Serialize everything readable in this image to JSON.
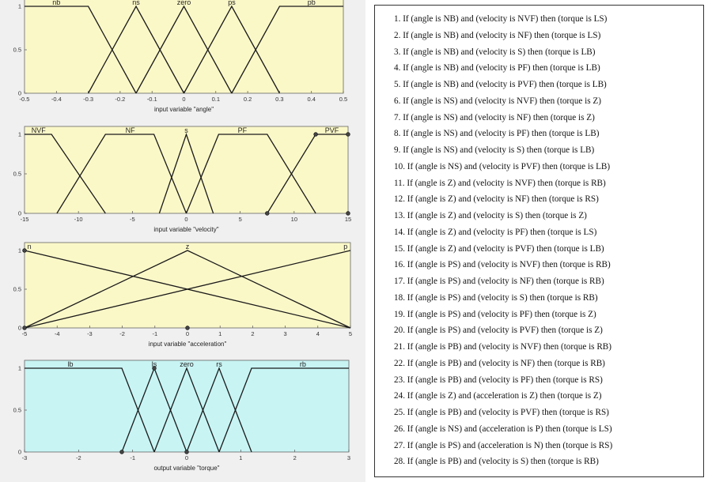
{
  "plots": [
    {
      "id": "angle",
      "xlabel": "input variable \"angle\"",
      "xlim": [
        -0.5,
        0.5
      ],
      "ylim": [
        0,
        1
      ],
      "xticks": [
        "-0.5",
        "-0.4",
        "-0.3",
        "-0.2",
        "-0.1",
        "0",
        "0.1",
        "0.2",
        "0.3",
        "0.4",
        "0.5"
      ],
      "xtick_values": [
        -0.5,
        -0.4,
        -0.3,
        -0.2,
        -0.1,
        0,
        0.1,
        0.2,
        0.3,
        0.4,
        0.5
      ],
      "yticks": [
        "0",
        "0.5",
        "1"
      ],
      "background": "#fbf8c8",
      "mfs": [
        {
          "name": "nb",
          "labelx": -0.4,
          "points": [
            [
              -0.5,
              1
            ],
            [
              -0.3,
              1
            ],
            [
              -0.15,
              0
            ]
          ]
        },
        {
          "name": "ns",
          "labelx": -0.15,
          "points": [
            [
              -0.3,
              0
            ],
            [
              -0.15,
              1
            ],
            [
              0,
              0
            ]
          ]
        },
        {
          "name": "zero",
          "labelx": 0,
          "points": [
            [
              -0.15,
              0
            ],
            [
              0,
              1
            ],
            [
              0.15,
              0
            ]
          ]
        },
        {
          "name": "ps",
          "labelx": 0.15,
          "points": [
            [
              0,
              0
            ],
            [
              0.15,
              1
            ],
            [
              0.3,
              0
            ]
          ]
        },
        {
          "name": "pb",
          "labelx": 0.4,
          "points": [
            [
              0.15,
              0
            ],
            [
              0.3,
              1
            ],
            [
              0.5,
              1
            ]
          ]
        }
      ]
    },
    {
      "id": "velocity",
      "xlabel": "input variable \"velocity\"",
      "xlim": [
        -15,
        15
      ],
      "ylim": [
        0,
        1
      ],
      "xticks": [
        "-15",
        "-10",
        "-5",
        "0",
        "5",
        "10",
        "15"
      ],
      "xtick_values": [
        -15,
        -10,
        -5,
        0,
        5,
        10,
        15
      ],
      "yticks": [
        "0",
        "0.5",
        "1"
      ],
      "background": "#fbf8c8",
      "mfs": [
        {
          "name": "NVF",
          "labelx": -13.7,
          "points": [
            [
              -15,
              1
            ],
            [
              -12.5,
              1
            ],
            [
              -7.5,
              0
            ]
          ]
        },
        {
          "name": "NF",
          "labelx": -5.2,
          "points": [
            [
              -12,
              0
            ],
            [
              -7.5,
              1
            ],
            [
              -3,
              1
            ],
            [
              0,
              0
            ]
          ]
        },
        {
          "name": "s",
          "labelx": 0,
          "points": [
            [
              -2.5,
              0
            ],
            [
              0,
              1
            ],
            [
              2.5,
              0
            ]
          ]
        },
        {
          "name": "PF",
          "labelx": 5.2,
          "points": [
            [
              0,
              0
            ],
            [
              3,
              1
            ],
            [
              7.5,
              1
            ],
            [
              12,
              0
            ]
          ]
        },
        {
          "name": "PVF",
          "labelx": 13.5,
          "points": [
            [
              7.5,
              0
            ],
            [
              12,
              1
            ],
            [
              15,
              1
            ]
          ]
        }
      ],
      "markers": [
        [
          7.5,
          0
        ],
        [
          12,
          1
        ],
        [
          15,
          1
        ],
        [
          15,
          0
        ]
      ]
    },
    {
      "id": "acceleration",
      "xlabel": "input variable \"acceleration\"",
      "xlim": [
        -5,
        5
      ],
      "ylim": [
        0,
        1
      ],
      "xticks": [
        "-5",
        "-4",
        "-3",
        "-2",
        "-1",
        "0",
        "1",
        "2",
        "3",
        "4",
        "5"
      ],
      "xtick_values": [
        -5,
        -4,
        -3,
        -2,
        -1,
        0,
        1,
        2,
        3,
        4,
        5
      ],
      "yticks": [
        "0",
        "0.5",
        "1"
      ],
      "background": "#fbf8c8",
      "mfs": [
        {
          "name": "n",
          "labelx": -4.85,
          "points": [
            [
              -5,
              1
            ],
            [
              5,
              0
            ]
          ]
        },
        {
          "name": "z",
          "labelx": 0,
          "points": [
            [
              -5,
              0
            ],
            [
              0,
              1
            ],
            [
              5,
              0
            ]
          ]
        },
        {
          "name": "p",
          "labelx": 4.85,
          "points": [
            [
              -5,
              0
            ],
            [
              5,
              1
            ]
          ]
        }
      ],
      "markers": [
        [
          -5,
          1
        ],
        [
          0,
          0
        ],
        [
          -5,
          0
        ]
      ]
    },
    {
      "id": "torque",
      "xlabel": "output variable \"torque\"",
      "xlim": [
        -3,
        3
      ],
      "ylim": [
        0,
        1
      ],
      "xticks": [
        "-3",
        "-2",
        "-1",
        "0",
        "1",
        "2",
        "3"
      ],
      "xtick_values": [
        -3,
        -2,
        -1,
        0,
        1,
        2,
        3
      ],
      "yticks": [
        "0",
        "0.5",
        "1"
      ],
      "background": "#c8f4f4",
      "mfs": [
        {
          "name": "lb",
          "labelx": -2.15,
          "points": [
            [
              -3,
              1
            ],
            [
              -1.2,
              1
            ],
            [
              -0.6,
              0
            ]
          ]
        },
        {
          "name": "ls",
          "labelx": -0.6,
          "points": [
            [
              -1.2,
              0
            ],
            [
              -0.6,
              1
            ],
            [
              0,
              0
            ]
          ]
        },
        {
          "name": "zero",
          "labelx": 0,
          "points": [
            [
              -0.6,
              0
            ],
            [
              0,
              1
            ],
            [
              0.6,
              0
            ]
          ]
        },
        {
          "name": "rs",
          "labelx": 0.6,
          "points": [
            [
              0,
              0
            ],
            [
              0.6,
              1
            ],
            [
              1.2,
              0
            ]
          ]
        },
        {
          "name": "rb",
          "labelx": 2.15,
          "points": [
            [
              0.6,
              0
            ],
            [
              1.2,
              1
            ],
            [
              3,
              1
            ]
          ]
        }
      ],
      "markers": [
        [
          -1.2,
          0
        ],
        [
          -0.6,
          1
        ],
        [
          0,
          0
        ]
      ]
    }
  ],
  "rules": [
    "1.   If (angle is NB) and (velocity is NVF) then (torque is LS)",
    "2.   If (angle is NB) and (velocity is NF) then (torque is LS)",
    "3.   If (angle is NB) and (velocity is S) then (torque is LB)",
    "4.   If (angle is NB) and (velocity is PF) then (torque is LB)",
    "5.   If (angle is NB) and (velocity is PVF) then (torque is LB)",
    "6.   If (angle is NS) and (velocity is NVF) then (torque is Z)",
    "7.   If (angle is NS) and (velocity is NF) then (torque is Z)",
    "8.   If (angle is NS) and (velocity is PF) then (torque is LB)",
    "9.   If (angle is NS) and (velocity is S) then (torque is LB)",
    "10. If (angle is NS) and (velocity is PVF) then (torque is LB)",
    "11. If (angle is Z) and (velocity is NVF) then (torque is RB)",
    "12. If (angle is Z) and (velocity is NF) then (torque is RS)",
    "13. If (angle is Z) and (velocity is S) then (torque is Z)",
    "14. If (angle is Z) and (velocity is PF) then (torque is LS)",
    "15. If (angle is Z) and (velocity is PVF) then (torque is LB)",
    "16. If (angle is PS) and (velocity is NVF) then (torque is RB)",
    "17. If (angle is PS) and (velocity is NF) then (torque is RB)",
    "18. If (angle is PS) and (velocity is S) then (torque is RB)",
    "19. If (angle is PS) and (velocity is PF) then (torque is Z)",
    "20. If (angle is PS) and (velocity is PVF) then (torque is Z)",
    "21. If (angle is PB) and (velocity is NVF) then (torque is RB)",
    "22. If (angle is PB) and (velocity is NF) then (torque is RB)",
    "23. If (angle is PB) and (velocity is PF) then (torque is RS)",
    "24. If (angle is Z) and (acceleration is Z) then (torque is Z)",
    "25. If (angle is PB) and (velocity is PVF) then (torque is RS)",
    "26. If (angle is NS) and (acceleration is P) then (torque is LS)",
    "27. If (angle is PS) and (acceleration is N) then (torque is RS)",
    "28. If (angle is PB) and (velocity is S) then (torque is RB)"
  ]
}
